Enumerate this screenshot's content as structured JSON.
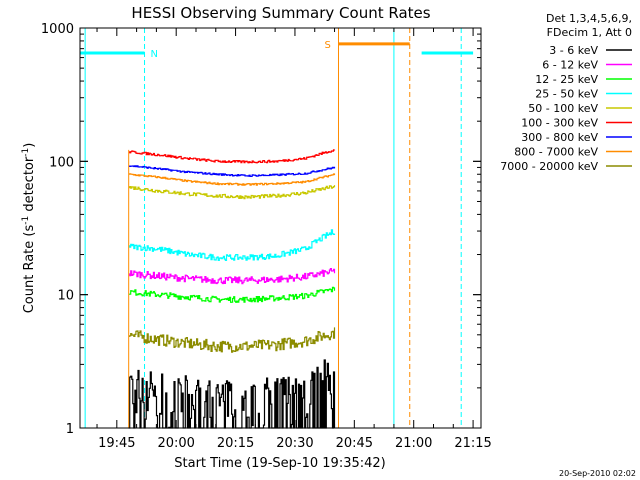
{
  "chart_data": {
    "type": "line",
    "title": "HESSI Observing Summary Count Rates",
    "xlabel": "Start Time (19-Sep-10 19:35:42)",
    "ylabel_main": "Count Rate (s",
    "ylabel_sup1": "-1",
    "ylabel_mid": " detector",
    "ylabel_sup2": "-1",
    "ylabel_end": ")",
    "yscale": "log",
    "ylim": [
      1,
      1000
    ],
    "xlim": [
      "19:35:42",
      "21:17"
    ],
    "y_ticks": [
      "1",
      "10",
      "100",
      "1000"
    ],
    "x_ticks": [
      "19:45",
      "20:00",
      "20:15",
      "20:30",
      "20:45",
      "21:00",
      "21:15"
    ],
    "legend_header": [
      "Det 1,3,4,5,6,9,",
      "FDecim 1, Att 0"
    ],
    "legend_placement": "right",
    "footer_date": "20-Sep-2010 02:02",
    "flags": [
      {
        "label": "N",
        "color": "#00ffff"
      },
      {
        "label": "S",
        "color": "#ff8c00"
      }
    ],
    "flag_spans": [
      {
        "name": "night",
        "color": "#00ffff",
        "start": "19:35:42",
        "end": "19:52",
        "level": 650
      },
      {
        "name": "night",
        "color": "#00ffff",
        "start": "21:02",
        "end": "21:15",
        "level": 650
      },
      {
        "name": "saa",
        "color": "#ff8c00",
        "start": "20:41",
        "end": "20:59",
        "level": 760
      }
    ],
    "x_markers": [
      {
        "time": "19:37",
        "style": "solid",
        "color": "#00ffff"
      },
      {
        "time": "19:52",
        "style": "dashed",
        "color": "#00ffff"
      },
      {
        "time": "20:41",
        "style": "solid",
        "color": "#ff8c00"
      },
      {
        "time": "20:59",
        "style": "dashed",
        "color": "#ff8c00"
      },
      {
        "time": "20:55",
        "style": "solid",
        "color": "#00ffff"
      },
      {
        "time": "21:12",
        "style": "dashed",
        "color": "#00ffff"
      }
    ],
    "data_interval": {
      "start": "19:48",
      "end": "20:40"
    },
    "series": [
      {
        "name": "3 - 6 keV",
        "color": "#000000",
        "profile": [
          2.0,
          1.9,
          1.7,
          1.6,
          1.6,
          1.7,
          2.0,
          2.4
        ]
      },
      {
        "name": "6 - 12 keV",
        "color": "#ff00ff",
        "profile": [
          14.5,
          13.8,
          13.2,
          12.8,
          12.8,
          13.0,
          13.6,
          15
        ]
      },
      {
        "name": "12 - 25 keV",
        "color": "#00ff00",
        "profile": [
          10.5,
          10.0,
          9.6,
          9.2,
          9.2,
          9.4,
          9.8,
          11
        ]
      },
      {
        "name": "25 - 50 keV",
        "color": "#00ffff",
        "profile": [
          23,
          22,
          20,
          19,
          19,
          19.5,
          22,
          30
        ]
      },
      {
        "name": "50 - 100 keV",
        "color": "#c8c800",
        "profile": [
          64,
          60,
          57,
          55,
          54,
          55,
          58,
          65
        ]
      },
      {
        "name": "100 - 300 keV",
        "color": "#ff0000",
        "profile": [
          118,
          112,
          105,
          100,
          99,
          100,
          105,
          122
        ]
      },
      {
        "name": "300 - 800 keV",
        "color": "#0000ff",
        "profile": [
          93,
          88,
          83,
          80,
          78,
          79,
          81,
          90
        ]
      },
      {
        "name": "800 - 7000 keV",
        "color": "#ff8c00",
        "profile": [
          80,
          76,
          71,
          68,
          67,
          68,
          70,
          80
        ]
      },
      {
        "name": "7000 - 20000 keV",
        "color": "#8c8c00",
        "profile": [
          5.0,
          4.6,
          4.3,
          4.1,
          4.1,
          4.2,
          4.5,
          5.2
        ]
      }
    ]
  }
}
